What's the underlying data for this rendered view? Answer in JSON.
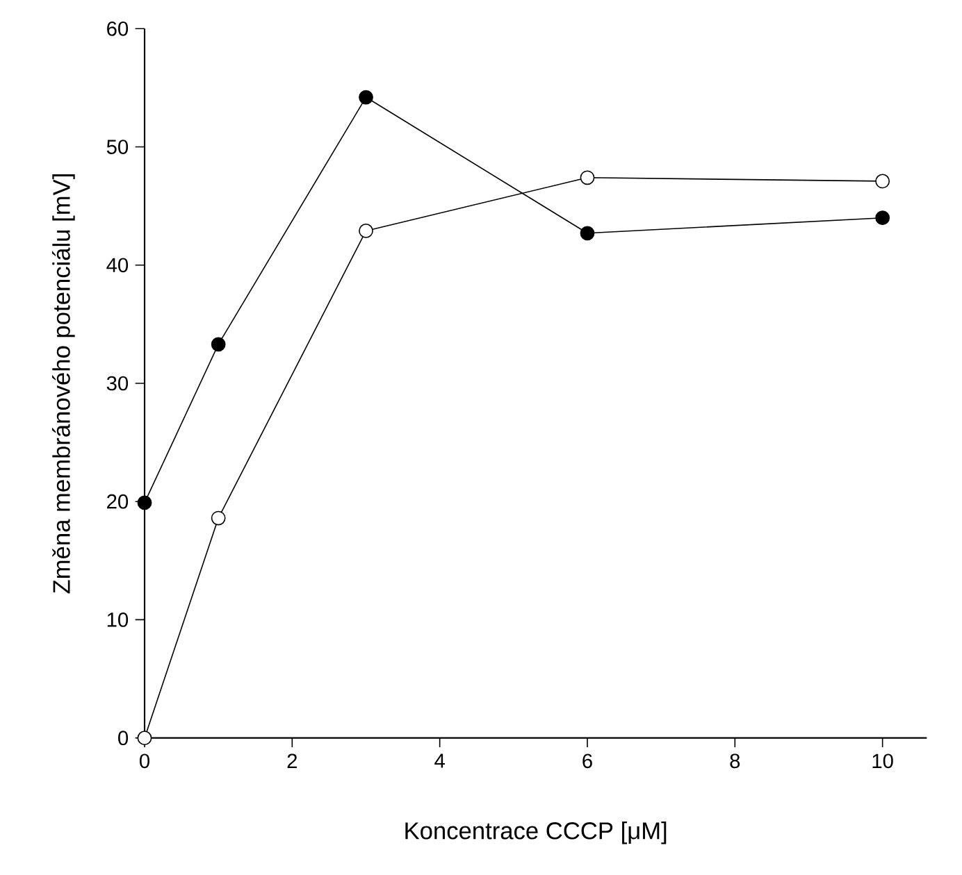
{
  "chart_data": {
    "type": "line",
    "xlabel": "Koncentrace CCCP [μM]",
    "ylabel": "Změna membránového potenciálu [mV]",
    "x": [
      0,
      1,
      3,
      6,
      10
    ],
    "series": [
      {
        "color": "#000000",
        "values": [
          19.9,
          33.3,
          54.2,
          42.7,
          44.0
        ]
      },
      {
        "color": "#ffffff",
        "values": [
          0,
          18.6,
          42.9,
          47.4,
          47.1
        ]
      }
    ],
    "xlim": [
      0,
      10.6
    ],
    "ylim": [
      0,
      60
    ],
    "xticks": [
      0,
      2,
      4,
      6,
      8,
      10
    ],
    "yticks": [
      0,
      10,
      20,
      30,
      40,
      50,
      60
    ],
    "marker": "circle",
    "line_style": "solid"
  }
}
